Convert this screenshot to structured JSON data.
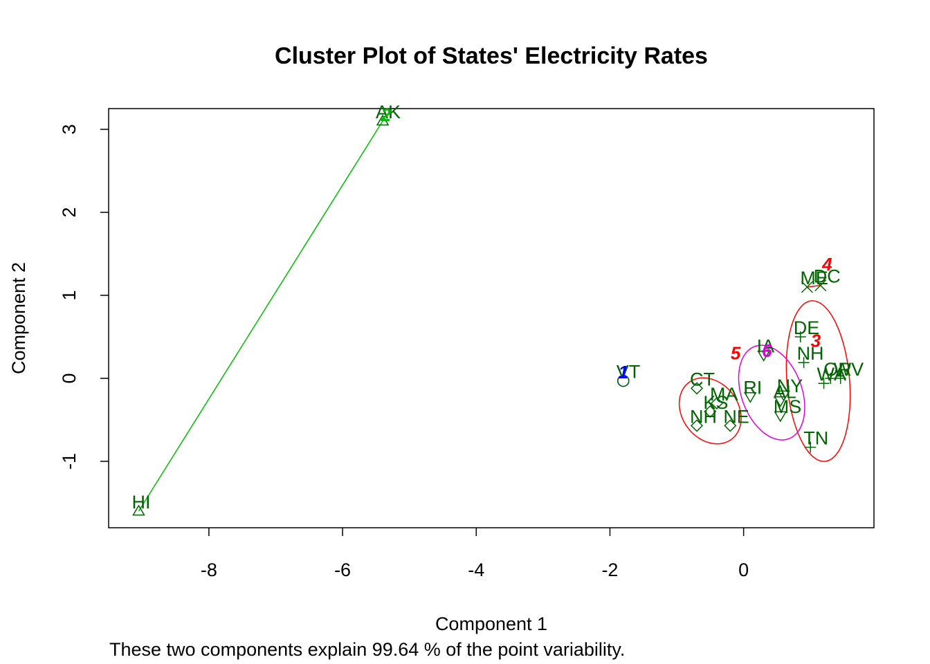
{
  "chart_data": {
    "type": "scatter",
    "title": "Cluster Plot of States' Electricity Rates",
    "xlabel": "Component 1",
    "ylabel": "Component 2",
    "subtitle": "These two components explain 99.64 % of the point variability.",
    "xlim": [
      -9.5,
      1.95
    ],
    "ylim": [
      -1.8,
      3.25
    ],
    "x_ticks": [
      -8,
      -6,
      -4,
      -2,
      0
    ],
    "y_ticks": [
      -1,
      0,
      1,
      2,
      3
    ],
    "grid": false,
    "legend": "none",
    "colors": {
      "points": "#006400",
      "ellipse_1": "#0000FF",
      "ellipse_2": "#00BB00",
      "ellipse_red": "#FF0000",
      "ellipse_6": "#E000E0"
    },
    "clusters": [
      {
        "label": "1",
        "x": -1.8,
        "y": 0.0,
        "color": "#0000FF"
      },
      {
        "label": "2",
        "x": -5.35,
        "y": 3.1,
        "color": "#00BB00"
      },
      {
        "label": "3",
        "x": 1.08,
        "y": 0.38,
        "color": "#FF0000"
      },
      {
        "label": "4",
        "x": 1.25,
        "y": 1.3,
        "color": "#FF0000"
      },
      {
        "label": "5",
        "x": -0.12,
        "y": 0.23,
        "color": "#FF0000"
      },
      {
        "label": "6",
        "x": 0.35,
        "y": 0.26,
        "color": "#E000E0"
      }
    ],
    "points": [
      {
        "label": "AK",
        "x": -5.4,
        "y": 3.1,
        "cluster": 2
      },
      {
        "label": "HI",
        "x": -9.05,
        "y": -1.6,
        "cluster": 2
      },
      {
        "label": "VT",
        "x": -1.8,
        "y": -0.03,
        "cluster": 1
      },
      {
        "label": "ME",
        "x": 0.95,
        "y": 1.1,
        "cluster": 4
      },
      {
        "label": "DC",
        "x": 1.15,
        "y": 1.12,
        "cluster": 4
      },
      {
        "label": "DE",
        "x": 0.85,
        "y": 0.5,
        "cluster": 3
      },
      {
        "label": "OR",
        "x": 1.3,
        "y": 0.0,
        "cluster": 3
      },
      {
        "label": "WV",
        "x": 1.45,
        "y": 0.0,
        "cluster": 3
      },
      {
        "label": "WA",
        "x": 1.2,
        "y": -0.06,
        "cluster": 3
      },
      {
        "label": "TN",
        "x": 1.0,
        "y": -0.83,
        "cluster": 3
      },
      {
        "label": "NH",
        "x": 0.9,
        "y": 0.19,
        "cluster": 3
      },
      {
        "label": "CT",
        "x": -0.7,
        "y": -0.12,
        "cluster": 5
      },
      {
        "label": "MA",
        "x": -0.4,
        "y": -0.3,
        "cluster": 5
      },
      {
        "label": "KS",
        "x": -0.5,
        "y": -0.4,
        "cluster": 5
      },
      {
        "label": "NH",
        "x": -0.7,
        "y": -0.57,
        "cluster": 5
      },
      {
        "label": "NE",
        "x": -0.2,
        "y": -0.57,
        "cluster": 5
      },
      {
        "label": "IA",
        "x": 0.3,
        "y": 0.28,
        "cluster": 6
      },
      {
        "label": "RI",
        "x": 0.1,
        "y": -0.22,
        "cluster": 6
      },
      {
        "label": "NY",
        "x": 0.6,
        "y": -0.2,
        "cluster": 6
      },
      {
        "label": "AL",
        "x": 0.55,
        "y": -0.27,
        "cluster": 6
      },
      {
        "label": "MS",
        "x": 0.55,
        "y": -0.45,
        "cluster": 6
      }
    ]
  }
}
